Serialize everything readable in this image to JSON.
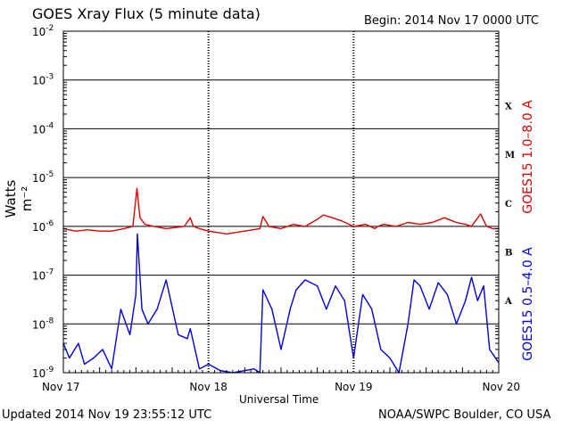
{
  "header": {
    "title": "GOES Xray Flux (5 minute data)",
    "begin": "Begin:  2014 Nov 17 0000 UTC"
  },
  "footer": {
    "updated": "Updated 2014 Nov 19 23:55:12 UTC",
    "credit": "NOAA/SWPC Boulder, CO USA"
  },
  "chart_data": {
    "type": "line",
    "title": "GOES Xray Flux (5 minute data)",
    "xlabel": "Universal Time",
    "ylabel": "Watts m⁻²",
    "yscale": "log",
    "ylim": [
      1e-09,
      0.01
    ],
    "xlim": [
      "2014-11-17 00:00",
      "2014-11-20 00:00"
    ],
    "x_ticks": [
      "Nov 17",
      "Nov 18",
      "Nov 19",
      "Nov 20"
    ],
    "y_ticks": [
      {
        "value": 1e-09,
        "exp": "-9"
      },
      {
        "value": 1e-08,
        "exp": "-8"
      },
      {
        "value": 1e-07,
        "exp": "-7"
      },
      {
        "value": 1e-06,
        "exp": "-6"
      },
      {
        "value": 1e-05,
        "exp": "-5"
      },
      {
        "value": 0.0001,
        "exp": "-4"
      },
      {
        "value": 0.001,
        "exp": "-3"
      },
      {
        "value": 0.01,
        "exp": "-2"
      }
    ],
    "flare_classes": [
      {
        "label": "A",
        "value": 3e-08
      },
      {
        "label": "B",
        "value": 3e-07
      },
      {
        "label": "C",
        "value": 3e-06
      },
      {
        "label": "M",
        "value": 3e-05
      },
      {
        "label": "X",
        "value": 0.0003
      }
    ],
    "grid": true,
    "series": [
      {
        "name": "GOES15 1.0–8.0 A",
        "color": "#e00000",
        "x": [
          "2014-11-17 00:00",
          "2014-11-17 02:00",
          "2014-11-17 04:00",
          "2014-11-17 06:00",
          "2014-11-17 08:00",
          "2014-11-17 10:00",
          "2014-11-17 11:30",
          "2014-11-17 12:10",
          "2014-11-17 12:40",
          "2014-11-17 13:30",
          "2014-11-17 15:00",
          "2014-11-17 17:00",
          "2014-11-17 20:00",
          "2014-11-17 21:00",
          "2014-11-17 21:30",
          "2014-11-17 22:30",
          "2014-11-18 00:00",
          "2014-11-18 03:00",
          "2014-11-18 06:00",
          "2014-11-18 08:30",
          "2014-11-18 09:00",
          "2014-11-18 10:00",
          "2014-11-18 12:00",
          "2014-11-18 14:00",
          "2014-11-18 16:00",
          "2014-11-18 18:00",
          "2014-11-18 19:00",
          "2014-11-18 20:30",
          "2014-11-18 22:00",
          "2014-11-19 00:00",
          "2014-11-19 02:00",
          "2014-11-19 03:30",
          "2014-11-19 04:00",
          "2014-11-19 05:00",
          "2014-11-19 07:00",
          "2014-11-19 09:00",
          "2014-11-19 11:00",
          "2014-11-19 13:00",
          "2014-11-19 15:00",
          "2014-11-19 17:00",
          "2014-11-19 18:30",
          "2014-11-19 19:30",
          "2014-11-19 21:00",
          "2014-11-19 22:00",
          "2014-11-19 23:00",
          "2014-11-20 00:00"
        ],
        "y": [
          9e-07,
          8e-07,
          8.5e-07,
          8e-07,
          8e-07,
          9e-07,
          1e-06,
          6e-06,
          1.5e-06,
          1.1e-06,
          1e-06,
          9e-07,
          1e-06,
          1.5e-06,
          1e-06,
          9e-07,
          8e-07,
          7e-07,
          8e-07,
          9e-07,
          1.6e-06,
          1e-06,
          9e-07,
          1.1e-06,
          1e-06,
          1.4e-06,
          1.7e-06,
          1.5e-06,
          1.3e-06,
          1e-06,
          1.1e-06,
          9e-07,
          1e-06,
          1.1e-06,
          1e-06,
          1.2e-06,
          1.1e-06,
          1.2e-06,
          1.5e-06,
          1.2e-06,
          1.1e-06,
          1e-06,
          1.8e-06,
          1e-06,
          9e-07,
          9e-07
        ]
      },
      {
        "name": "GOES15 0.5–4.0 A",
        "color": "#0000e0",
        "x": [
          "2014-11-17 00:00",
          "2014-11-17 01:00",
          "2014-11-17 02:30",
          "2014-11-17 03:30",
          "2014-11-17 05:00",
          "2014-11-17 06:30",
          "2014-11-17 08:00",
          "2014-11-17 09:30",
          "2014-11-17 11:00",
          "2014-11-17 12:00",
          "2014-11-17 12:15",
          "2014-11-17 13:00",
          "2014-11-17 14:00",
          "2014-11-17 15:30",
          "2014-11-17 17:00",
          "2014-11-17 19:00",
          "2014-11-17 20:30",
          "2014-11-17 21:00",
          "2014-11-17 22:30",
          "2014-11-18 00:00",
          "2014-11-18 02:00",
          "2014-11-18 04:00",
          "2014-11-18 06:00",
          "2014-11-18 07:30",
          "2014-11-18 08:30",
          "2014-11-18 09:00",
          "2014-11-18 10:30",
          "2014-11-18 12:00",
          "2014-11-18 13:30",
          "2014-11-18 14:30",
          "2014-11-18 16:00",
          "2014-11-18 18:00",
          "2014-11-18 19:30",
          "2014-11-18 21:00",
          "2014-11-18 22:30",
          "2014-11-19 00:00",
          "2014-11-19 01:30",
          "2014-11-19 03:00",
          "2014-11-19 04:30",
          "2014-11-19 06:00",
          "2014-11-19 07:30",
          "2014-11-19 09:00",
          "2014-11-19 10:00",
          "2014-11-19 11:00",
          "2014-11-19 12:30",
          "2014-11-19 14:00",
          "2014-11-19 15:30",
          "2014-11-19 17:00",
          "2014-11-19 18:30",
          "2014-11-19 19:30",
          "2014-11-19 20:30",
          "2014-11-19 21:30",
          "2014-11-19 22:30",
          "2014-11-20 00:00"
        ],
        "y": [
          4e-09,
          2e-09,
          4e-09,
          1.5e-09,
          2e-09,
          3e-09,
          1.2e-09,
          2e-08,
          6e-09,
          4e-08,
          7e-07,
          2e-08,
          1e-08,
          2e-08,
          8e-08,
          6e-09,
          5e-09,
          8e-09,
          1.2e-09,
          1.5e-09,
          1.1e-09,
          1e-09,
          1.1e-09,
          1.2e-09,
          1e-09,
          5e-08,
          2e-08,
          3e-09,
          2e-08,
          5e-08,
          8e-08,
          6e-08,
          2e-08,
          6e-08,
          3e-08,
          2e-09,
          4e-08,
          2e-08,
          3e-09,
          2e-09,
          1e-09,
          1e-08,
          8e-08,
          6e-08,
          2e-08,
          7e-08,
          4e-08,
          1e-08,
          3e-08,
          9e-08,
          3e-08,
          6e-08,
          3e-09,
          1.6e-09
        ]
      }
    ]
  }
}
